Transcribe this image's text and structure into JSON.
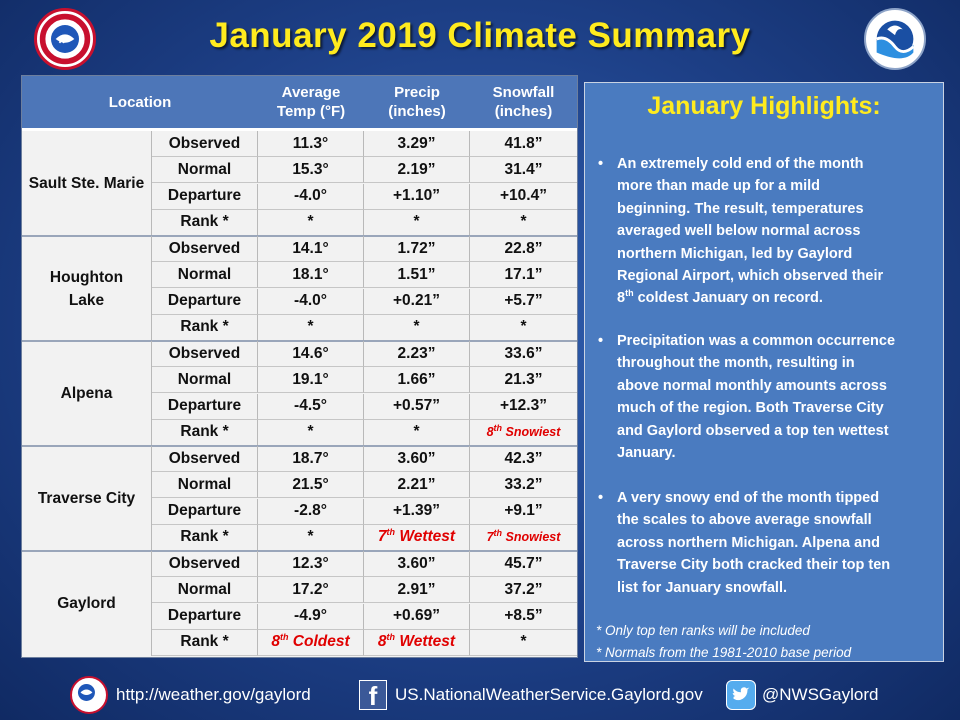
{
  "title": "January 2019 Climate Summary",
  "headers": {
    "location": "Location",
    "temp": [
      "Average",
      "Temp (°F)"
    ],
    "precip": [
      "Precip",
      "(inches)"
    ],
    "snow": [
      "Snowfall",
      "(inches)"
    ]
  },
  "stations": [
    {
      "name": "Sault Ste. Marie",
      "rows": [
        {
          "label": "Observed",
          "temp": "11.3°",
          "precip": "3.29”",
          "snow": "41.8”"
        },
        {
          "label": "Normal",
          "temp": "15.3°",
          "precip": "2.19”",
          "snow": "31.4”"
        },
        {
          "label": "Departure",
          "temp": "-4.0°",
          "precip": "+1.10”",
          "snow": "+10.4”"
        },
        {
          "label": "Rank *",
          "temp": "*",
          "precip": "*",
          "snow": "*"
        }
      ]
    },
    {
      "name": "Houghton Lake",
      "name_lines": [
        "Houghton",
        "Lake"
      ],
      "rows": [
        {
          "label": "Observed",
          "temp": "14.1°",
          "precip": "1.72”",
          "snow": "22.8”"
        },
        {
          "label": "Normal",
          "temp": "18.1°",
          "precip": "1.51”",
          "snow": "17.1”"
        },
        {
          "label": "Departure",
          "temp": "-4.0°",
          "precip": "+0.21”",
          "snow": "+5.7”"
        },
        {
          "label": "Rank *",
          "temp": "*",
          "precip": "*",
          "snow": "*"
        }
      ]
    },
    {
      "name": "Alpena",
      "rows": [
        {
          "label": "Observed",
          "temp": "14.6°",
          "precip": "2.23”",
          "snow": "33.6”"
        },
        {
          "label": "Normal",
          "temp": "19.1°",
          "precip": "1.66”",
          "snow": "21.3”"
        },
        {
          "label": "Departure",
          "temp": "-4.5°",
          "precip": "+0.57”",
          "snow": "+12.3”"
        },
        {
          "label": "Rank *",
          "temp": "*",
          "precip": "*",
          "snow": {
            "num": "8",
            "sup": "th",
            "text": " Snowiest"
          }
        }
      ]
    },
    {
      "name": "Traverse City",
      "rows": [
        {
          "label": "Observed",
          "temp": "18.7°",
          "precip": "3.60”",
          "snow": "42.3”"
        },
        {
          "label": "Normal",
          "temp": "21.5°",
          "precip": "2.21”",
          "snow": "33.2”"
        },
        {
          "label": "Departure",
          "temp": "-2.8°",
          "precip": "+1.39”",
          "snow": "+9.1”"
        },
        {
          "label": "Rank *",
          "temp": "*",
          "precip": {
            "num": "7",
            "sup": "th",
            "text": " Wettest"
          },
          "snow": {
            "num": "7",
            "sup": "th",
            "text": " Snowiest"
          }
        }
      ]
    },
    {
      "name": "Gaylord",
      "rows": [
        {
          "label": "Observed",
          "temp": "12.3°",
          "precip": "3.60”",
          "snow": "45.7”"
        },
        {
          "label": "Normal",
          "temp": "17.2°",
          "precip": "2.91”",
          "snow": "37.2”"
        },
        {
          "label": "Departure",
          "temp": "-4.9°",
          "precip": "+0.69”",
          "snow": "+8.5”"
        },
        {
          "label": "Rank *",
          "temp": {
            "num": "8",
            "sup": "th",
            "text": " Coldest"
          },
          "precip": {
            "num": "8",
            "sup": "th",
            "text": " Wettest"
          },
          "snow": "*"
        }
      ]
    }
  ],
  "highlights": {
    "title": "January Highlights:",
    "bullets": [
      [
        "An extremely cold end of the month",
        "more than made up for a mild",
        "beginning. The result, temperatures",
        "averaged well below normal across",
        "northern Michigan, led by Gaylord",
        "Regional Airport, which observed their",
        {
          "num": "8",
          "sup": "th",
          "text": " coldest January on record."
        }
      ],
      [
        "Precipitation was a common occurrence",
        "throughout the month, resulting in",
        "above normal monthly amounts across",
        "much of the region.  Both Traverse City",
        "and Gaylord observed a top ten wettest",
        "January."
      ],
      [
        "A very snowy end of the month tipped",
        "the scales to above average snowfall",
        "across northern Michigan.  Alpena and",
        "Traverse City both cracked their top ten",
        "list for January snowfall."
      ]
    ],
    "notes": [
      "*  Only top ten ranks will be included",
      "*  Normals from the 1981-2010 base period"
    ]
  },
  "footer": {
    "website": "http://weather.gov/gaylord",
    "facebook": "US.NationalWeatherService.Gaylord.gov",
    "twitter": "@NWSGaylord"
  },
  "colors": {
    "title": "#ffeb1e",
    "header_bg": "#4d76b8",
    "panel_bg": "#4a7bc0",
    "rank_red": "#e00000"
  },
  "icons": [
    "nws-logo",
    "noaa-logo",
    "facebook-icon",
    "twitter-icon"
  ]
}
